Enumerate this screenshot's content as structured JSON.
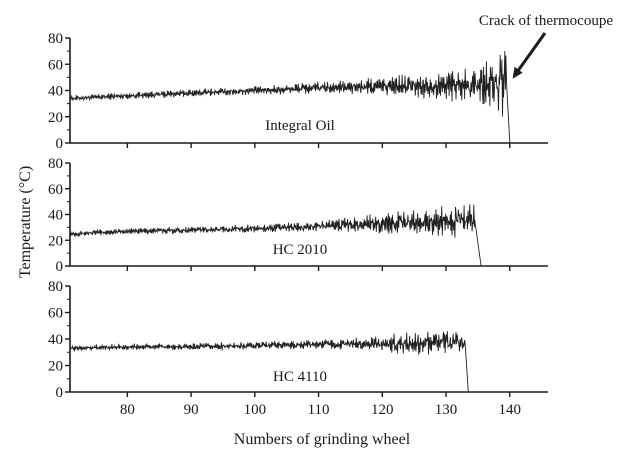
{
  "chart_data": {
    "type": "line",
    "xlabel": "Numbers of grinding wheel",
    "ylabel": "Temperature (°C)",
    "xlim": [
      71,
      146
    ],
    "x_ticks": [
      80,
      90,
      100,
      110,
      120,
      130,
      140
    ],
    "y_ticks": [
      0,
      20,
      40,
      60,
      80
    ],
    "grid": false,
    "line_color": "#222222",
    "annotation": {
      "text": "Crack of thermocoupe",
      "x": 139.5,
      "y": 52,
      "panel": 0
    },
    "panels": [
      {
        "label": "Integral Oil",
        "ylim": [
          0,
          80
        ],
        "base": [
          [
            71,
            34
          ],
          [
            80,
            36
          ],
          [
            90,
            38
          ],
          [
            100,
            40
          ],
          [
            110,
            42
          ],
          [
            120,
            43
          ],
          [
            130,
            44
          ],
          [
            139.5,
            45
          ]
        ],
        "noise": [
          [
            71,
            2
          ],
          [
            100,
            3
          ],
          [
            115,
            5
          ],
          [
            125,
            8
          ],
          [
            133,
            12
          ],
          [
            138,
            20
          ],
          [
            139.5,
            30
          ]
        ],
        "end_x": 140,
        "end_drop": 0
      },
      {
        "label": "HC 2010",
        "ylim": [
          0,
          80
        ],
        "base": [
          [
            71,
            25
          ],
          [
            80,
            27
          ],
          [
            90,
            28
          ],
          [
            100,
            29
          ],
          [
            110,
            31
          ],
          [
            120,
            33
          ],
          [
            130,
            35
          ],
          [
            134.5,
            36
          ]
        ],
        "noise": [
          [
            71,
            2
          ],
          [
            105,
            3
          ],
          [
            115,
            5
          ],
          [
            125,
            9
          ],
          [
            134.5,
            13
          ]
        ],
        "end_x": 135.5,
        "end_drop": 0
      },
      {
        "label": "HC 4110",
        "ylim": [
          0,
          80
        ],
        "base": [
          [
            71,
            33
          ],
          [
            80,
            34
          ],
          [
            90,
            34
          ],
          [
            100,
            35
          ],
          [
            110,
            36
          ],
          [
            120,
            36
          ],
          [
            130,
            37
          ],
          [
            133,
            37
          ]
        ],
        "noise": [
          [
            71,
            2
          ],
          [
            110,
            3
          ],
          [
            118,
            5
          ],
          [
            125,
            8
          ],
          [
            133,
            10
          ]
        ],
        "end_x": 133.5,
        "end_drop": 0
      }
    ]
  }
}
